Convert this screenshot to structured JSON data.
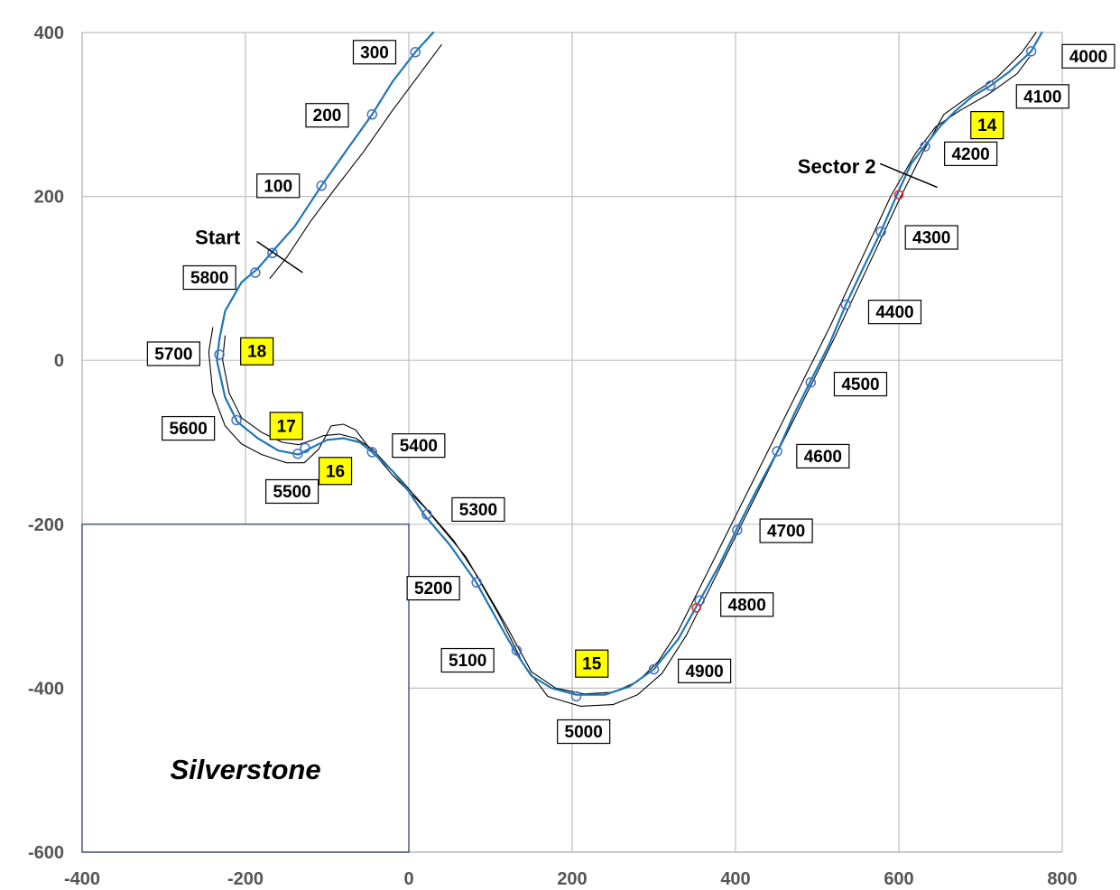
{
  "chart_data": {
    "type": "line",
    "title": "Silverstone",
    "xlim": [
      -400,
      800
    ],
    "ylim": [
      -600,
      400
    ],
    "x_ticks": [
      "-400",
      "-200",
      "0",
      "200",
      "400",
      "600",
      "800"
    ],
    "y_ticks": [
      "400",
      "200",
      "0",
      "-200",
      "-400",
      "-600"
    ],
    "grid": true,
    "colors": {
      "racing_line": "#1f77b4",
      "track_edge": "#000000",
      "marker": "#4472c4",
      "sector_marker": "#e02020",
      "corner_fill": "#ffff00",
      "axes": "#bfbfbf",
      "inset_border": "#1f3864"
    },
    "racing_line": [
      [
        -232,
        25
      ],
      [
        -225,
        60
      ],
      [
        -205,
        95
      ],
      [
        -185,
        112
      ],
      [
        -165,
        135
      ],
      [
        -140,
        163
      ],
      [
        -107,
        213
      ],
      [
        -75,
        258
      ],
      [
        -45,
        300
      ],
      [
        -20,
        340
      ],
      [
        8,
        376
      ],
      [
        30,
        400
      ]
    ],
    "racing_line_2": [
      [
        -232,
        25
      ],
      [
        -235,
        0
      ],
      [
        -225,
        -45
      ],
      [
        -210,
        -75
      ],
      [
        -185,
        -95
      ],
      [
        -160,
        -110
      ],
      [
        -135,
        -115
      ],
      [
        -120,
        -107
      ],
      [
        -100,
        -97
      ],
      [
        -80,
        -95
      ],
      [
        -60,
        -100
      ],
      [
        -45,
        -112
      ],
      [
        -20,
        -135
      ],
      [
        0,
        -160
      ],
      [
        20,
        -190
      ],
      [
        50,
        -225
      ],
      [
        82,
        -270
      ],
      [
        110,
        -320
      ],
      [
        130,
        -355
      ],
      [
        150,
        -385
      ],
      [
        175,
        -400
      ],
      [
        205,
        -408
      ],
      [
        240,
        -408
      ],
      [
        270,
        -398
      ],
      [
        300,
        -377
      ],
      [
        330,
        -340
      ],
      [
        355,
        -295
      ],
      [
        380,
        -250
      ],
      [
        402,
        -205
      ],
      [
        425,
        -160
      ],
      [
        452,
        -110
      ],
      [
        472,
        -65
      ],
      [
        492,
        -25
      ],
      [
        515,
        20
      ],
      [
        535,
        68
      ],
      [
        555,
        110
      ],
      [
        578,
        157
      ],
      [
        598,
        203
      ],
      [
        615,
        240
      ],
      [
        632,
        262
      ],
      [
        650,
        285
      ],
      [
        670,
        305
      ],
      [
        690,
        322
      ],
      [
        712,
        335
      ],
      [
        735,
        352
      ],
      [
        762,
        377
      ],
      [
        775,
        400
      ]
    ],
    "outer_edge": [
      [
        -240,
        40
      ],
      [
        -245,
        10
      ],
      [
        -240,
        -40
      ],
      [
        -225,
        -80
      ],
      [
        -205,
        -102
      ],
      [
        -180,
        -115
      ],
      [
        -150,
        -125
      ],
      [
        -128,
        -125
      ],
      [
        -110,
        -108
      ],
      [
        -95,
        -80
      ],
      [
        -80,
        -78
      ],
      [
        -65,
        -85
      ],
      [
        -50,
        -105
      ],
      [
        -20,
        -140
      ],
      [
        20,
        -180
      ],
      [
        70,
        -240
      ],
      [
        110,
        -310
      ],
      [
        140,
        -370
      ],
      [
        170,
        -410
      ],
      [
        210,
        -422
      ],
      [
        250,
        -420
      ],
      [
        280,
        -408
      ],
      [
        310,
        -382
      ],
      [
        340,
        -335
      ],
      [
        370,
        -275
      ],
      [
        400,
        -215
      ],
      [
        440,
        -135
      ],
      [
        480,
        -55
      ],
      [
        520,
        25
      ],
      [
        560,
        110
      ],
      [
        600,
        195
      ],
      [
        630,
        255
      ],
      [
        655,
        300
      ],
      [
        690,
        325
      ],
      [
        720,
        345
      ],
      [
        750,
        375
      ],
      [
        768,
        400
      ]
    ],
    "inner_edge": [
      [
        -225,
        30
      ],
      [
        -228,
        0
      ],
      [
        -220,
        -40
      ],
      [
        -205,
        -70
      ],
      [
        -180,
        -88
      ],
      [
        -155,
        -100
      ],
      [
        -135,
        -103
      ],
      [
        -120,
        -98
      ],
      [
        -105,
        -92
      ],
      [
        -85,
        -90
      ],
      [
        -65,
        -95
      ],
      [
        -45,
        -108
      ],
      [
        -15,
        -140
      ],
      [
        25,
        -185
      ],
      [
        55,
        -220
      ],
      [
        85,
        -265
      ],
      [
        120,
        -325
      ],
      [
        150,
        -380
      ],
      [
        180,
        -400
      ],
      [
        215,
        -407
      ],
      [
        250,
        -405
      ],
      [
        280,
        -392
      ],
      [
        305,
        -368
      ],
      [
        330,
        -330
      ],
      [
        360,
        -270
      ],
      [
        395,
        -200
      ],
      [
        435,
        -120
      ],
      [
        475,
        -40
      ],
      [
        515,
        40
      ],
      [
        555,
        125
      ],
      [
        590,
        200
      ],
      [
        620,
        252
      ],
      [
        645,
        285
      ],
      [
        675,
        305
      ],
      [
        710,
        325
      ],
      [
        745,
        350
      ],
      [
        760,
        370
      ]
    ],
    "start_edge": [
      [
        -170,
        100
      ],
      [
        -150,
        125
      ],
      [
        -120,
        170
      ],
      [
        -90,
        210
      ],
      [
        -55,
        255
      ],
      [
        -20,
        305
      ],
      [
        10,
        345
      ],
      [
        40,
        385
      ]
    ],
    "markers": [
      [
        -188,
        107
      ],
      [
        -167,
        131
      ],
      [
        -107,
        213
      ],
      [
        -45,
        300
      ],
      [
        8,
        376
      ],
      [
        -232,
        7
      ],
      [
        -211,
        -73
      ],
      [
        -136,
        -114
      ],
      [
        -127,
        -107
      ],
      [
        -45,
        -112
      ],
      [
        22,
        -188
      ],
      [
        83,
        -271
      ],
      [
        132,
        -354
      ],
      [
        205,
        -410
      ],
      [
        300,
        -377
      ],
      [
        356,
        -293
      ],
      [
        402,
        -207
      ],
      [
        451,
        -111
      ],
      [
        492,
        -27
      ],
      [
        535,
        68
      ],
      [
        578,
        157
      ],
      [
        632,
        261
      ],
      [
        712,
        335
      ],
      [
        762,
        377
      ]
    ],
    "sector_markers": [
      [
        600,
        202
      ],
      [
        352,
        -302
      ]
    ],
    "distance_labels": [
      {
        "text": "100",
        "x": -160,
        "y": 213
      },
      {
        "text": "200",
        "x": -100,
        "y": 299
      },
      {
        "text": "300",
        "x": -42,
        "y": 376
      },
      {
        "text": "5800",
        "x": -244,
        "y": 101
      },
      {
        "text": "5700",
        "x": -288,
        "y": 8
      },
      {
        "text": "5600",
        "x": -270,
        "y": -83
      },
      {
        "text": "5500",
        "x": -143,
        "y": -160
      },
      {
        "text": "5400",
        "x": 12,
        "y": -104
      },
      {
        "text": "5300",
        "x": 85,
        "y": -182
      },
      {
        "text": "5200",
        "x": 30,
        "y": -278
      },
      {
        "text": "5100",
        "x": 72,
        "y": -366
      },
      {
        "text": "5000",
        "x": 214,
        "y": -453
      },
      {
        "text": "4900",
        "x": 362,
        "y": -379
      },
      {
        "text": "4800",
        "x": 414,
        "y": -298
      },
      {
        "text": "4700",
        "x": 462,
        "y": -208
      },
      {
        "text": "4600",
        "x": 507,
        "y": -117
      },
      {
        "text": "4500",
        "x": 553,
        "y": -29
      },
      {
        "text": "4400",
        "x": 595,
        "y": 59
      },
      {
        "text": "4300",
        "x": 640,
        "y": 150
      },
      {
        "text": "4200",
        "x": 688,
        "y": 252
      },
      {
        "text": "4100",
        "x": 776,
        "y": 322
      },
      {
        "text": "4000",
        "x": 832,
        "y": 371
      }
    ],
    "corner_labels": [
      {
        "text": "14",
        "x": 708,
        "y": 287
      },
      {
        "text": "15",
        "x": 224,
        "y": -370
      },
      {
        "text": "16",
        "x": -90,
        "y": -135
      },
      {
        "text": "17",
        "x": -150,
        "y": -80
      },
      {
        "text": "18",
        "x": -186,
        "y": 11
      }
    ],
    "annotations": [
      {
        "text": "Start",
        "x": -234,
        "y": 142
      },
      {
        "text": "Sector 2",
        "x": 524,
        "y": 228
      }
    ],
    "start_line": [
      [
        -186,
        145
      ],
      [
        -130,
        107
      ]
    ],
    "sector2_line": [
      [
        577,
        240
      ],
      [
        647,
        211
      ]
    ]
  }
}
